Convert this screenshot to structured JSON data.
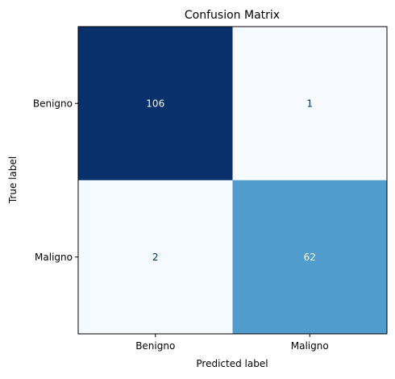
{
  "chart_data": {
    "type": "heatmap",
    "title": "Confusion Matrix",
    "xlabel": "Predicted label",
    "ylabel": "True label",
    "x_categories": [
      "Benigno",
      "Maligno"
    ],
    "y_categories": [
      "Benigno",
      "Maligno"
    ],
    "values": [
      [
        106,
        1
      ],
      [
        2,
        62
      ]
    ],
    "colormap": "Blues",
    "colors": {
      "min": "#f7fbff",
      "mid": "#529dcc",
      "max": "#08306b",
      "text_dark": "#08306b",
      "text_light": "#f7fbff"
    },
    "colorbar": false,
    "grid": false
  }
}
